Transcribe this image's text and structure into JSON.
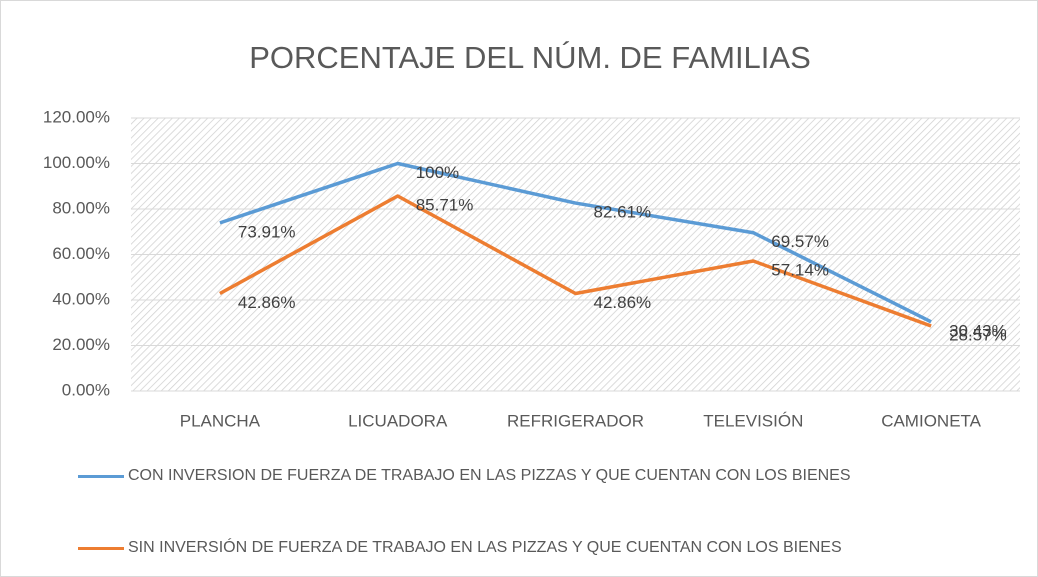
{
  "chart_data": {
    "type": "line",
    "title": "PORCENTAJE DEL NÚM. DE FAMILIAS",
    "categories": [
      "PLANCHA",
      "LICUADORA",
      "REFRIGERADOR",
      "TELEVISIÓN",
      "CAMIONETA"
    ],
    "series": [
      {
        "name": "CON INVERSION DE FUERZA DE TRABAJO EN LAS PIZZAS Y QUE CUENTAN CON LOS BIENES",
        "color": "#5b9bd5",
        "values": [
          73.91,
          100,
          82.61,
          69.57,
          30.43
        ],
        "value_labels": [
          "73.91%",
          "100%",
          "82.61%",
          "69.57%",
          "30.43%"
        ]
      },
      {
        "name": "SIN INVERSIÓN DE FUERZA DE TRABAJO EN LAS PIZZAS Y QUE CUENTAN CON LOS BIENES",
        "color": "#ed7d31",
        "values": [
          42.86,
          85.71,
          42.86,
          57.14,
          28.57
        ],
        "value_labels": [
          "42.86%",
          "85.71%",
          "42.86%",
          "57.14%",
          "28.57%"
        ]
      }
    ],
    "ylim": [
      0,
      120
    ],
    "yticks": [
      {
        "value": 0,
        "label": "0.00%"
      },
      {
        "value": 20,
        "label": "20.00%"
      },
      {
        "value": 40,
        "label": "40.00%"
      },
      {
        "value": 60,
        "label": "60.00%"
      },
      {
        "value": 80,
        "label": "80.00%"
      },
      {
        "value": 100,
        "label": "100.00%"
      },
      {
        "value": 120,
        "label": "120.00%"
      }
    ],
    "grid": true,
    "legend": "bottom"
  }
}
